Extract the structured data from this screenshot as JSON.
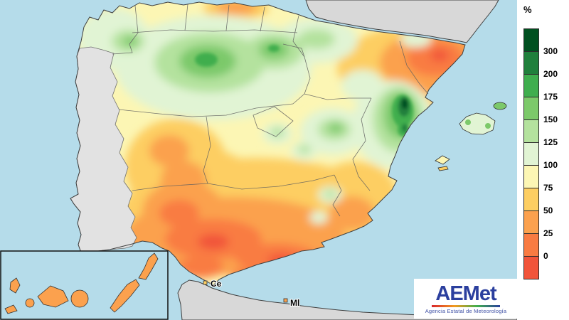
{
  "map": {
    "colors": {
      "sea": "#b5dcea",
      "neighbor_land": "#d8d8d8",
      "portugal_land": "#e2e2e2"
    },
    "labels": {
      "ceuta": "Ce",
      "melilla": "Ml"
    }
  },
  "legend": {
    "unit": "%",
    "boundary_labels": [
      "300",
      "200",
      "175",
      "150",
      "125",
      "100",
      "75",
      "50",
      "25",
      "0"
    ],
    "colors": [
      "#005020",
      "#20803c",
      "#3fae4e",
      "#7cc96a",
      "#b4e29e",
      "#e1f4d4",
      "#fcf6b4",
      "#fdce62",
      "#fba14e",
      "#f97b42",
      "#f1543a"
    ]
  },
  "logo": {
    "text": "AEMet",
    "tagline": "Agencia Estatal de Meteorología"
  }
}
